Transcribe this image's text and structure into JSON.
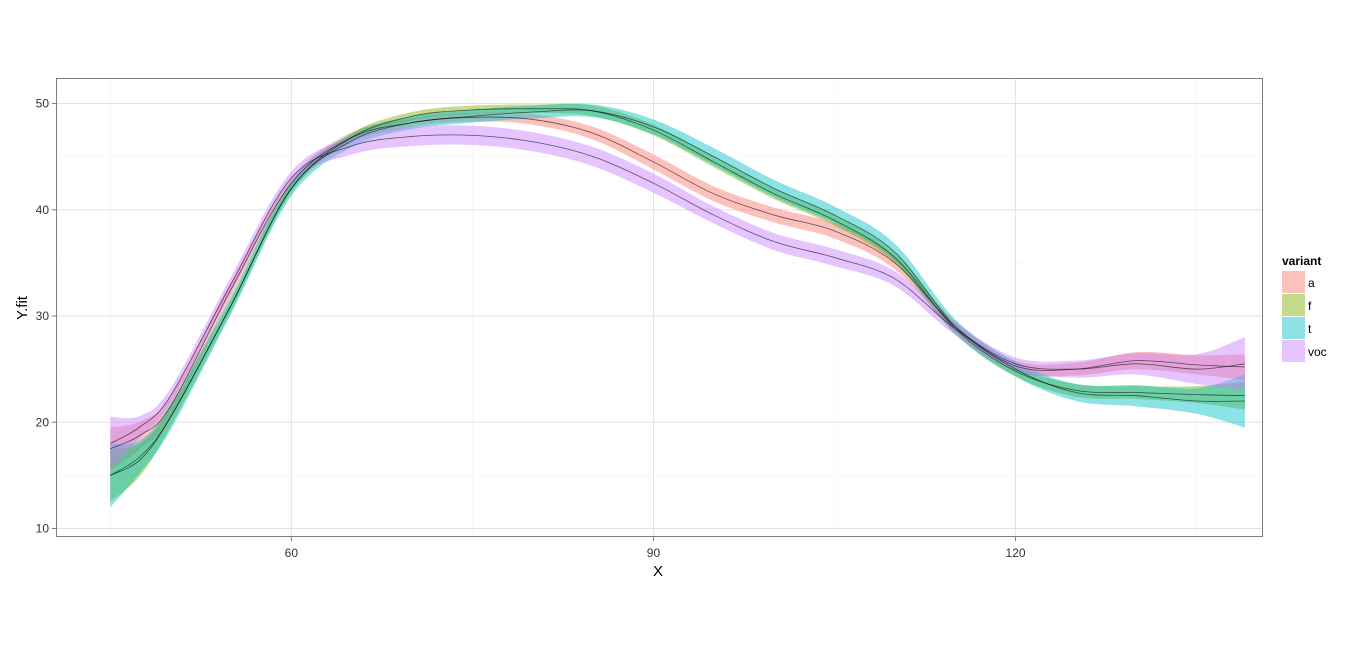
{
  "chart_data": {
    "type": "line",
    "xlabel": "X",
    "ylabel": "Y.fit",
    "xlim": [
      40.5,
      140.5
    ],
    "ylim": [
      9.2,
      52.4
    ],
    "x_ticks": [
      60,
      90,
      120
    ],
    "y_ticks": [
      10,
      20,
      30,
      40,
      50
    ],
    "grid": true,
    "legend": {
      "title": "variant",
      "position": "right"
    },
    "band_opacity": 0.45,
    "series": [
      {
        "name": "a",
        "color": "#F8766D",
        "x": [
          45,
          47.5,
          50,
          55,
          60,
          65,
          70,
          75,
          80,
          85,
          90,
          95,
          100,
          105,
          110,
          115,
          120,
          125,
          130,
          135,
          139
        ],
        "y": [
          17.5,
          18.8,
          21.5,
          32.5,
          42.5,
          46.8,
          48.2,
          48.7,
          48.5,
          47.2,
          44.5,
          41.5,
          39.5,
          38.0,
          35.0,
          29.0,
          25.3,
          25.0,
          25.8,
          25.4,
          25.2
        ],
        "ymin": [
          15.5,
          17.5,
          20.5,
          31.8,
          42.0,
          46.3,
          47.8,
          48.3,
          48.0,
          46.6,
          43.8,
          40.8,
          38.8,
          37.3,
          34.4,
          28.5,
          24.8,
          24.4,
          25.0,
          24.5,
          24.0
        ],
        "ymax": [
          19.5,
          20.1,
          22.5,
          33.2,
          43.0,
          47.3,
          48.6,
          49.1,
          49.0,
          47.8,
          45.2,
          42.2,
          40.2,
          38.7,
          35.6,
          29.5,
          25.8,
          25.6,
          26.6,
          26.3,
          26.4
        ]
      },
      {
        "name": "f",
        "color": "#7CAE00",
        "x": [
          45,
          47.5,
          50,
          55,
          60,
          65,
          70,
          75,
          80,
          85,
          90,
          95,
          100,
          105,
          110,
          115,
          120,
          125,
          130,
          135,
          139
        ],
        "y": [
          15.0,
          16.5,
          20.5,
          31.0,
          42.0,
          46.8,
          48.8,
          49.4,
          49.5,
          49.3,
          47.5,
          44.5,
          41.5,
          39.0,
          35.5,
          28.8,
          24.8,
          23.0,
          22.8,
          22.6,
          22.5
        ],
        "ymin": [
          12.5,
          15.0,
          19.6,
          30.4,
          41.6,
          46.4,
          48.4,
          49.0,
          49.1,
          48.8,
          47.0,
          44.0,
          41.0,
          38.5,
          35.0,
          28.3,
          24.3,
          22.4,
          22.2,
          21.8,
          21.2
        ],
        "ymax": [
          17.5,
          18.0,
          21.4,
          31.6,
          42.4,
          47.2,
          49.2,
          49.8,
          49.9,
          49.8,
          48.0,
          45.0,
          42.0,
          39.5,
          36.0,
          29.3,
          25.3,
          23.6,
          23.4,
          23.4,
          23.8
        ]
      },
      {
        "name": "t",
        "color": "#00BFC4",
        "x": [
          45,
          47.5,
          50,
          55,
          60,
          65,
          70,
          75,
          80,
          85,
          90,
          95,
          100,
          105,
          110,
          115,
          120,
          125,
          130,
          135,
          139
        ],
        "y": [
          15.0,
          16.8,
          20.5,
          31.0,
          42.0,
          46.5,
          48.2,
          48.8,
          49.2,
          49.3,
          47.8,
          45.0,
          42.0,
          39.5,
          36.0,
          29.0,
          25.0,
          22.8,
          22.5,
          22.0,
          22.0
        ],
        "ymin": [
          12.0,
          15.3,
          19.3,
          30.2,
          41.3,
          45.9,
          47.6,
          48.2,
          48.6,
          48.7,
          47.1,
          44.2,
          41.2,
          38.7,
          35.2,
          28.3,
          24.3,
          22.0,
          21.5,
          20.8,
          19.5
        ],
        "ymax": [
          18.0,
          18.3,
          21.7,
          31.8,
          42.7,
          47.1,
          48.8,
          49.4,
          49.8,
          49.9,
          48.5,
          45.8,
          42.8,
          40.3,
          36.8,
          29.7,
          25.7,
          23.6,
          23.5,
          23.2,
          24.5
        ]
      },
      {
        "name": "voc",
        "color": "#C77CFF",
        "x": [
          45,
          47.5,
          50,
          55,
          60,
          65,
          70,
          75,
          80,
          85,
          90,
          95,
          100,
          105,
          110,
          115,
          120,
          125,
          130,
          135,
          139
        ],
        "y": [
          18.0,
          19.6,
          22.5,
          33.0,
          43.0,
          46.0,
          46.9,
          47.0,
          46.4,
          45.0,
          42.5,
          39.5,
          37.0,
          35.5,
          33.5,
          28.8,
          25.5,
          25.0,
          25.5,
          25.0,
          25.5
        ],
        "ymin": [
          15.5,
          18.6,
          21.8,
          32.3,
          42.4,
          45.2,
          46.0,
          46.1,
          45.5,
          44.1,
          41.6,
          38.7,
          36.2,
          34.7,
          32.8,
          28.2,
          24.9,
          24.2,
          24.5,
          23.6,
          23.0
        ],
        "ymax": [
          20.5,
          20.6,
          23.2,
          33.7,
          43.6,
          46.8,
          47.8,
          47.9,
          47.3,
          45.9,
          43.4,
          40.3,
          37.8,
          36.3,
          34.2,
          29.4,
          26.1,
          25.8,
          26.5,
          26.4,
          28.0
        ]
      }
    ]
  }
}
